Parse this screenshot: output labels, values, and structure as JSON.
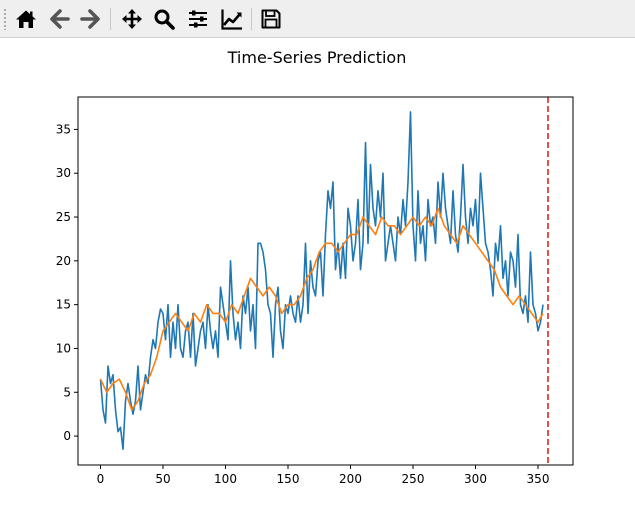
{
  "toolbar": {
    "buttons": [
      {
        "name": "home-icon"
      },
      {
        "name": "back-icon"
      },
      {
        "name": "forward-icon"
      },
      {
        "name": "pan-icon"
      },
      {
        "name": "zoom-icon"
      },
      {
        "name": "configure-subplots-icon"
      },
      {
        "name": "edit-axis-icon"
      },
      {
        "name": "save-icon"
      }
    ],
    "icon_color": "#000000",
    "disabled_color": "#555555"
  },
  "chart_data": {
    "type": "line",
    "title": "Time-Series Prediction",
    "xlabel": "",
    "ylabel": "",
    "xlim": [
      -18,
      378
    ],
    "ylim": [
      -3.3,
      38.7
    ],
    "xticks": [
      0,
      50,
      100,
      150,
      200,
      250,
      300,
      350
    ],
    "yticks": [
      0,
      5,
      10,
      15,
      20,
      25,
      30,
      35
    ],
    "grid": false,
    "series": [
      {
        "color": "#1f77b4",
        "points": [
          [
            0,
            6.5
          ],
          [
            2,
            3
          ],
          [
            4,
            1.5
          ],
          [
            6,
            8
          ],
          [
            8,
            6
          ],
          [
            10,
            7
          ],
          [
            12,
            3
          ],
          [
            14,
            0.5
          ],
          [
            16,
            1
          ],
          [
            18,
            -1.5
          ],
          [
            20,
            4
          ],
          [
            22,
            6
          ],
          [
            24,
            4
          ],
          [
            26,
            2.5
          ],
          [
            28,
            4
          ],
          [
            30,
            8
          ],
          [
            32,
            3
          ],
          [
            34,
            5
          ],
          [
            36,
            7
          ],
          [
            38,
            6
          ],
          [
            40,
            9
          ],
          [
            42,
            11
          ],
          [
            44,
            10
          ],
          [
            46,
            13
          ],
          [
            48,
            14.5
          ],
          [
            50,
            14
          ],
          [
            52,
            11
          ],
          [
            54,
            15
          ],
          [
            56,
            9
          ],
          [
            58,
            13
          ],
          [
            60,
            10
          ],
          [
            62,
            15
          ],
          [
            64,
            10
          ],
          [
            66,
            9
          ],
          [
            68,
            12
          ],
          [
            70,
            13
          ],
          [
            72,
            9
          ],
          [
            74,
            14
          ],
          [
            76,
            8
          ],
          [
            78,
            10
          ],
          [
            80,
            12
          ],
          [
            82,
            13
          ],
          [
            84,
            10
          ],
          [
            86,
            15
          ],
          [
            88,
            12
          ],
          [
            90,
            10
          ],
          [
            92,
            12
          ],
          [
            94,
            9
          ],
          [
            96,
            17
          ],
          [
            98,
            15
          ],
          [
            100,
            13
          ],
          [
            102,
            11
          ],
          [
            104,
            20
          ],
          [
            106,
            14
          ],
          [
            108,
            11
          ],
          [
            110,
            13
          ],
          [
            112,
            10
          ],
          [
            114,
            16
          ],
          [
            116,
            14
          ],
          [
            118,
            17
          ],
          [
            120,
            12
          ],
          [
            122,
            15
          ],
          [
            124,
            10
          ],
          [
            126,
            22
          ],
          [
            128,
            22
          ],
          [
            130,
            21
          ],
          [
            132,
            19
          ],
          [
            134,
            15
          ],
          [
            136,
            14
          ],
          [
            138,
            9
          ],
          [
            140,
            15
          ],
          [
            142,
            17
          ],
          [
            144,
            12
          ],
          [
            146,
            10
          ],
          [
            148,
            15
          ],
          [
            150,
            14
          ],
          [
            152,
            16
          ],
          [
            154,
            14
          ],
          [
            156,
            13
          ],
          [
            158,
            16
          ],
          [
            160,
            13
          ],
          [
            162,
            15
          ],
          [
            164,
            22
          ],
          [
            166,
            14
          ],
          [
            168,
            20
          ],
          [
            170,
            17
          ],
          [
            172,
            16
          ],
          [
            174,
            20
          ],
          [
            176,
            21
          ],
          [
            178,
            16
          ],
          [
            180,
            23
          ],
          [
            182,
            28
          ],
          [
            184,
            26
          ],
          [
            186,
            29
          ],
          [
            188,
            19
          ],
          [
            190,
            22
          ],
          [
            192,
            18
          ],
          [
            194,
            22
          ],
          [
            196,
            18
          ],
          [
            198,
            26
          ],
          [
            200,
            24
          ],
          [
            202,
            20
          ],
          [
            204,
            22
          ],
          [
            206,
            27
          ],
          [
            208,
            19
          ],
          [
            210,
            22
          ],
          [
            212,
            33.5
          ],
          [
            214,
            22
          ],
          [
            216,
            31
          ],
          [
            218,
            26
          ],
          [
            220,
            24
          ],
          [
            222,
            28
          ],
          [
            224,
            25
          ],
          [
            226,
            30
          ],
          [
            228,
            20
          ],
          [
            230,
            22
          ],
          [
            232,
            24
          ],
          [
            234,
            22
          ],
          [
            236,
            20
          ],
          [
            238,
            25
          ],
          [
            240,
            23
          ],
          [
            242,
            27
          ],
          [
            244,
            24
          ],
          [
            246,
            29
          ],
          [
            248,
            37
          ],
          [
            250,
            24
          ],
          [
            252,
            20
          ],
          [
            254,
            28
          ],
          [
            256,
            22
          ],
          [
            258,
            24
          ],
          [
            260,
            20
          ],
          [
            262,
            27
          ],
          [
            264,
            24
          ],
          [
            266,
            25
          ],
          [
            268,
            22
          ],
          [
            270,
            29
          ],
          [
            272,
            25
          ],
          [
            274,
            30
          ],
          [
            276,
            26
          ],
          [
            278,
            24
          ],
          [
            280,
            22
          ],
          [
            282,
            28
          ],
          [
            284,
            23
          ],
          [
            286,
            21
          ],
          [
            288,
            25
          ],
          [
            290,
            31
          ],
          [
            292,
            25
          ],
          [
            294,
            22
          ],
          [
            296,
            26
          ],
          [
            298,
            24
          ],
          [
            300,
            27
          ],
          [
            302,
            22
          ],
          [
            304,
            30
          ],
          [
            306,
            26
          ],
          [
            308,
            22
          ],
          [
            310,
            21
          ],
          [
            312,
            19
          ],
          [
            314,
            16
          ],
          [
            316,
            22
          ],
          [
            318,
            20
          ],
          [
            320,
            24
          ],
          [
            322,
            18
          ],
          [
            324,
            20
          ],
          [
            326,
            16
          ],
          [
            328,
            21
          ],
          [
            330,
            20
          ],
          [
            332,
            17
          ],
          [
            334,
            23
          ],
          [
            336,
            15
          ],
          [
            338,
            14
          ],
          [
            340,
            16
          ],
          [
            342,
            13
          ],
          [
            344,
            21
          ],
          [
            346,
            15
          ],
          [
            348,
            14
          ],
          [
            350,
            12
          ],
          [
            352,
            13
          ],
          [
            354,
            15
          ]
        ]
      },
      {
        "color": "#ff7f0e",
        "points": [
          [
            0,
            6.5
          ],
          [
            5,
            5
          ],
          [
            10,
            6
          ],
          [
            15,
            6.5
          ],
          [
            20,
            5
          ],
          [
            25,
            3
          ],
          [
            30,
            4
          ],
          [
            35,
            6
          ],
          [
            40,
            7
          ],
          [
            45,
            9
          ],
          [
            50,
            12
          ],
          [
            55,
            13
          ],
          [
            60,
            14
          ],
          [
            65,
            13
          ],
          [
            70,
            12
          ],
          [
            75,
            14
          ],
          [
            80,
            13
          ],
          [
            85,
            15
          ],
          [
            90,
            14
          ],
          [
            95,
            14
          ],
          [
            100,
            13
          ],
          [
            105,
            15
          ],
          [
            110,
            14
          ],
          [
            115,
            16
          ],
          [
            120,
            18
          ],
          [
            125,
            17
          ],
          [
            130,
            16
          ],
          [
            135,
            17
          ],
          [
            140,
            16
          ],
          [
            145,
            14
          ],
          [
            150,
            15
          ],
          [
            155,
            15
          ],
          [
            160,
            16
          ],
          [
            165,
            18
          ],
          [
            170,
            19
          ],
          [
            175,
            21
          ],
          [
            180,
            22
          ],
          [
            185,
            22
          ],
          [
            190,
            21
          ],
          [
            195,
            22
          ],
          [
            200,
            23
          ],
          [
            205,
            23
          ],
          [
            210,
            25
          ],
          [
            215,
            24
          ],
          [
            220,
            23
          ],
          [
            225,
            25
          ],
          [
            230,
            24
          ],
          [
            235,
            24
          ],
          [
            240,
            23
          ],
          [
            245,
            24
          ],
          [
            250,
            25
          ],
          [
            255,
            24
          ],
          [
            260,
            25
          ],
          [
            265,
            24
          ],
          [
            270,
            26
          ],
          [
            275,
            24
          ],
          [
            280,
            23
          ],
          [
            285,
            22
          ],
          [
            290,
            24
          ],
          [
            295,
            23
          ],
          [
            300,
            22
          ],
          [
            305,
            21
          ],
          [
            310,
            20
          ],
          [
            315,
            19
          ],
          [
            320,
            17
          ],
          [
            325,
            16
          ],
          [
            330,
            15
          ],
          [
            335,
            16
          ],
          [
            340,
            15
          ],
          [
            345,
            14
          ],
          [
            350,
            13
          ],
          [
            354,
            14
          ]
        ]
      }
    ],
    "split_line": {
      "x": 358,
      "color": "#d62728",
      "style": "dashed"
    }
  }
}
